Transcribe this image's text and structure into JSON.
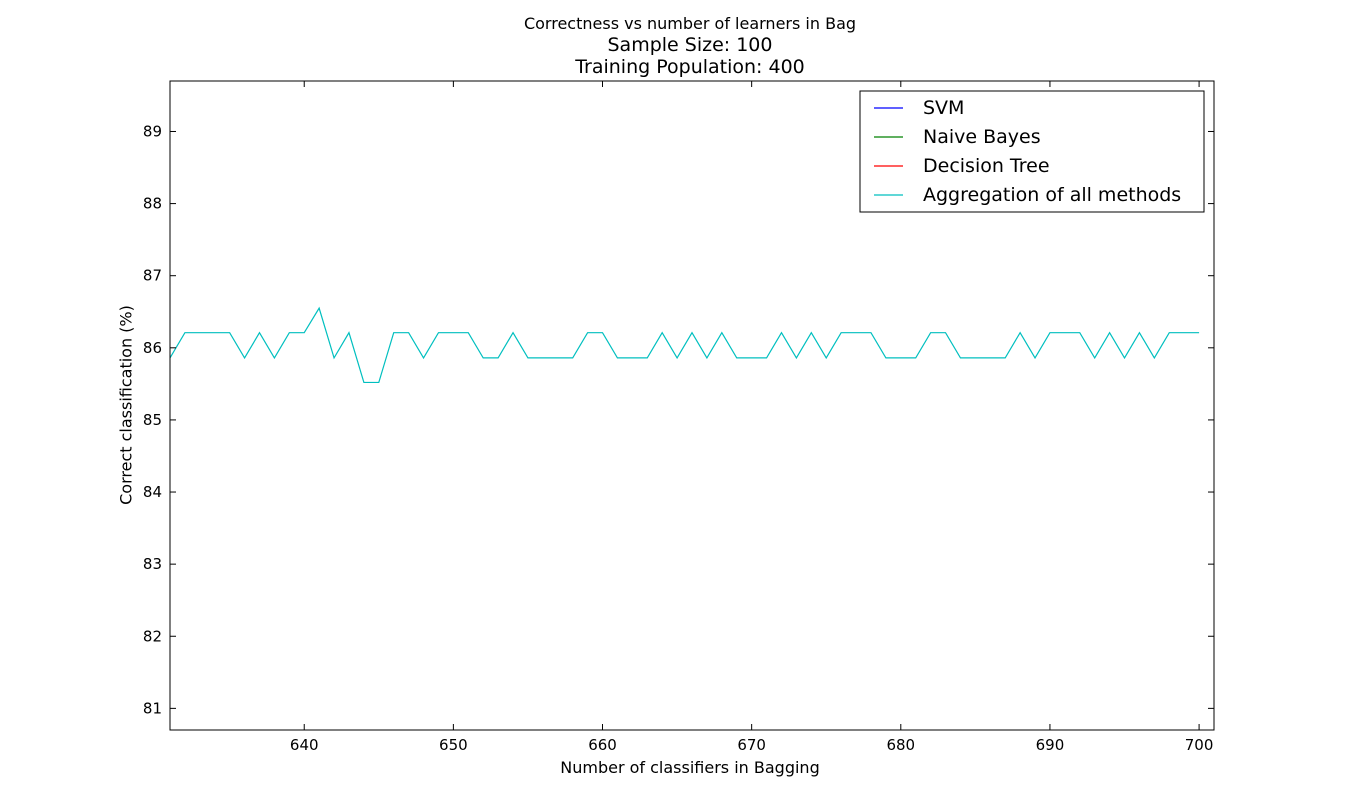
{
  "chart_data": {
    "type": "line",
    "title": "Correctness vs number of learners in Bag",
    "subtitle_lines": [
      "Sample Size: 100",
      "Training Population: 400"
    ],
    "xlabel": "Number of classifiers in Bagging",
    "ylabel": "Correct classification (%)",
    "xlim": [
      631,
      701
    ],
    "ylim": [
      80.7,
      89.7
    ],
    "xticks": [
      640,
      650,
      660,
      670,
      680,
      690,
      700
    ],
    "yticks": [
      81,
      82,
      83,
      84,
      85,
      86,
      87,
      88,
      89
    ],
    "grid": false,
    "legend_position": "top-right",
    "series": [
      {
        "name": "SVM",
        "color": "#0000ff",
        "x": [],
        "values": []
      },
      {
        "name": "Naive Bayes",
        "color": "#008000",
        "x": [],
        "values": []
      },
      {
        "name": "Decision Tree",
        "color": "#ff0000",
        "x": [],
        "values": []
      },
      {
        "name": "Aggregation of all methods",
        "color": "#00bfbf",
        "x": [
          631,
          632,
          633,
          634,
          635,
          636,
          637,
          638,
          639,
          640,
          641,
          642,
          643,
          644,
          645,
          646,
          647,
          648,
          649,
          650,
          651,
          652,
          653,
          654,
          655,
          656,
          657,
          658,
          659,
          660,
          661,
          662,
          663,
          664,
          665,
          666,
          667,
          668,
          669,
          670,
          671,
          672,
          673,
          674,
          675,
          676,
          677,
          678,
          679,
          680,
          681,
          682,
          683,
          684,
          685,
          686,
          687,
          688,
          689,
          690,
          691,
          692,
          693,
          694,
          695,
          696,
          697,
          698,
          699,
          700
        ],
        "values": [
          85.86,
          86.21,
          86.21,
          86.21,
          86.21,
          85.86,
          86.21,
          85.86,
          86.21,
          86.21,
          86.55,
          85.86,
          86.21,
          85.52,
          85.52,
          86.21,
          86.21,
          85.86,
          86.21,
          86.21,
          86.21,
          85.86,
          85.86,
          86.21,
          85.86,
          85.86,
          85.86,
          85.86,
          86.21,
          86.21,
          85.86,
          85.86,
          85.86,
          86.21,
          85.86,
          86.21,
          85.86,
          86.21,
          85.86,
          85.86,
          85.86,
          86.21,
          85.86,
          86.21,
          85.86,
          86.21,
          86.21,
          86.21,
          85.86,
          85.86,
          85.86,
          86.21,
          86.21,
          85.86,
          85.86,
          85.86,
          85.86,
          86.21,
          85.86,
          86.21,
          86.21,
          86.21,
          85.86,
          86.21,
          85.86,
          86.21,
          85.86,
          86.21,
          86.21,
          86.21
        ]
      }
    ]
  }
}
